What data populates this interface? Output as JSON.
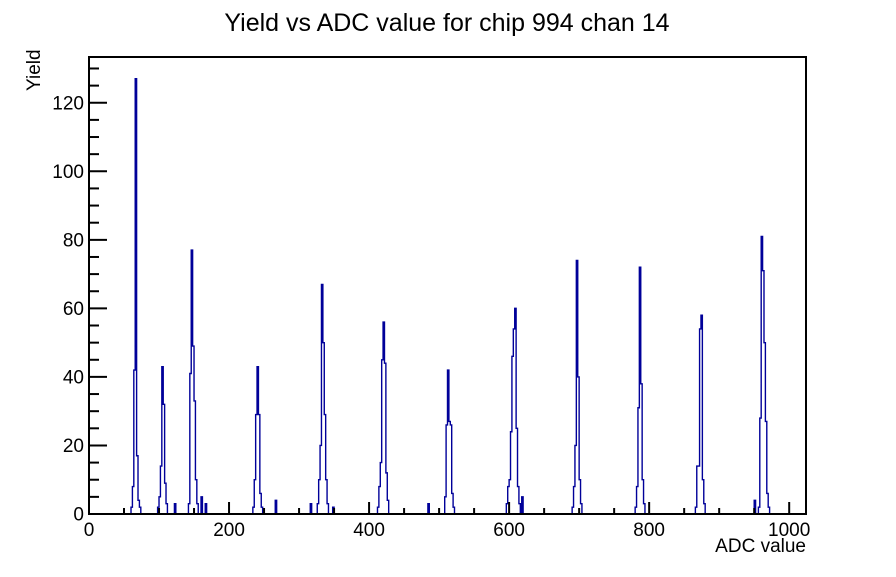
{
  "page": {
    "background": "#ffffff"
  },
  "chart_data": {
    "type": "bar",
    "title": "Yield vs ADC value for chip 994 chan 14",
    "xlabel": "ADC value",
    "ylabel": "Yield",
    "xlim": [
      0,
      1024
    ],
    "ylim": [
      0,
      133.35
    ],
    "x_major_ticks": [
      0,
      200,
      400,
      600,
      800,
      1000
    ],
    "x_minor_step": 50,
    "y_major_ticks": [
      0,
      20,
      40,
      60,
      80,
      100,
      120
    ],
    "y_minor_step": 5,
    "grid": false,
    "legend": false,
    "line_color": "#000099",
    "frame_color": "#000000",
    "bin_width": 2,
    "bins": [
      [
        60,
        2
      ],
      [
        62,
        8
      ],
      [
        64,
        42
      ],
      [
        66,
        127
      ],
      [
        68,
        17
      ],
      [
        70,
        4
      ],
      [
        72,
        2
      ],
      [
        98,
        2
      ],
      [
        100,
        5
      ],
      [
        102,
        14
      ],
      [
        104,
        43
      ],
      [
        106,
        32
      ],
      [
        108,
        9
      ],
      [
        110,
        3
      ],
      [
        122,
        3
      ],
      [
        142,
        3
      ],
      [
        144,
        41
      ],
      [
        146,
        77
      ],
      [
        148,
        49
      ],
      [
        150,
        33
      ],
      [
        152,
        10
      ],
      [
        154,
        3
      ],
      [
        160,
        5
      ],
      [
        166,
        3
      ],
      [
        234,
        2
      ],
      [
        236,
        10
      ],
      [
        238,
        29
      ],
      [
        240,
        43
      ],
      [
        242,
        29
      ],
      [
        244,
        6
      ],
      [
        246,
        2
      ],
      [
        266,
        4
      ],
      [
        316,
        3
      ],
      [
        326,
        3
      ],
      [
        328,
        10
      ],
      [
        330,
        20
      ],
      [
        332,
        67
      ],
      [
        334,
        50
      ],
      [
        336,
        29
      ],
      [
        338,
        10
      ],
      [
        340,
        3
      ],
      [
        348,
        2
      ],
      [
        412,
        2
      ],
      [
        414,
        8
      ],
      [
        416,
        15
      ],
      [
        418,
        45
      ],
      [
        420,
        56
      ],
      [
        422,
        44
      ],
      [
        424,
        12
      ],
      [
        426,
        4
      ],
      [
        484,
        3
      ],
      [
        508,
        5
      ],
      [
        510,
        26
      ],
      [
        512,
        42
      ],
      [
        514,
        27
      ],
      [
        516,
        26
      ],
      [
        518,
        6
      ],
      [
        520,
        2
      ],
      [
        596,
        3
      ],
      [
        598,
        8
      ],
      [
        600,
        10
      ],
      [
        602,
        24
      ],
      [
        604,
        46
      ],
      [
        606,
        54
      ],
      [
        608,
        60
      ],
      [
        610,
        25
      ],
      [
        612,
        8
      ],
      [
        614,
        3
      ],
      [
        618,
        5
      ],
      [
        690,
        2
      ],
      [
        692,
        8
      ],
      [
        694,
        20
      ],
      [
        696,
        74
      ],
      [
        698,
        40
      ],
      [
        700,
        10
      ],
      [
        702,
        3
      ],
      [
        780,
        2
      ],
      [
        782,
        8
      ],
      [
        784,
        31
      ],
      [
        786,
        72
      ],
      [
        788,
        38
      ],
      [
        790,
        10
      ],
      [
        792,
        3
      ],
      [
        866,
        2
      ],
      [
        868,
        14
      ],
      [
        870,
        14
      ],
      [
        872,
        54
      ],
      [
        874,
        58
      ],
      [
        876,
        10
      ],
      [
        878,
        3
      ],
      [
        950,
        4
      ],
      [
        956,
        2
      ],
      [
        958,
        28
      ],
      [
        960,
        81
      ],
      [
        962,
        71
      ],
      [
        964,
        50
      ],
      [
        966,
        27
      ],
      [
        968,
        6
      ],
      [
        970,
        2
      ]
    ]
  }
}
